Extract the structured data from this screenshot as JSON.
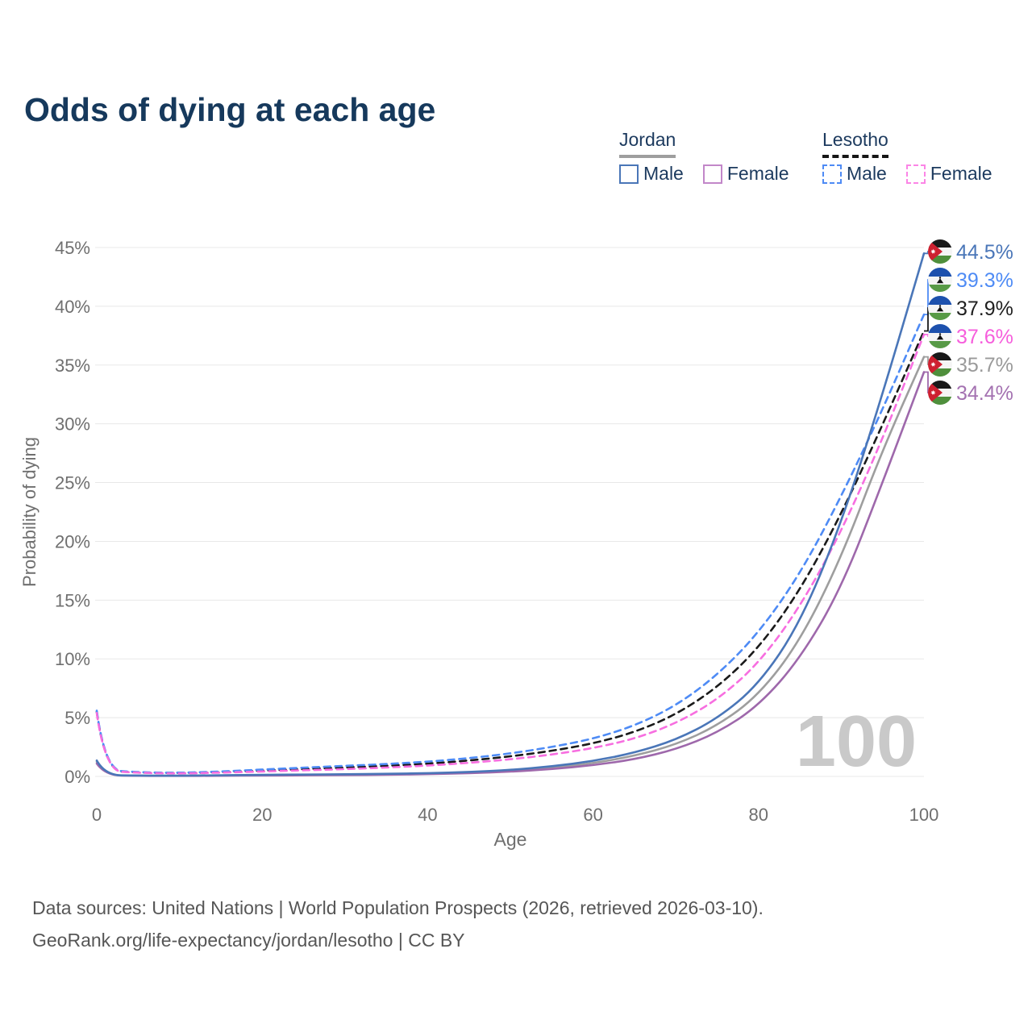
{
  "title": "Odds of dying at each age",
  "legend": {
    "groups": [
      {
        "name": "Jordan",
        "style": "solid",
        "line_color": "#9e9e9e",
        "items": [
          {
            "label": "Male",
            "color": "#4a76b8"
          },
          {
            "label": "Female",
            "color": "#c287c9"
          }
        ]
      },
      {
        "name": "Lesotho",
        "style": "dashed",
        "line_color": "#151515",
        "items": [
          {
            "label": "Male",
            "color": "#4e8bf5"
          },
          {
            "label": "Female",
            "color": "#fb85e6"
          }
        ]
      }
    ]
  },
  "chart_data": {
    "type": "line",
    "title": "Odds of dying at each age",
    "xlabel": "Age",
    "ylabel": "Probability of dying",
    "xlim": [
      0,
      100
    ],
    "ylim": [
      0,
      45
    ],
    "x_ticks": [
      0,
      20,
      40,
      60,
      80,
      100
    ],
    "y_ticks": [
      0,
      5,
      10,
      15,
      20,
      25,
      30,
      35,
      40,
      45
    ],
    "y_tick_suffix": "%",
    "grid": "horizontal-only",
    "legend_position": "top-right",
    "watermark": "100",
    "ages": [
      0,
      1,
      5,
      10,
      15,
      20,
      25,
      30,
      35,
      40,
      45,
      50,
      55,
      60,
      65,
      70,
      75,
      80,
      85,
      90,
      95,
      100
    ],
    "series": [
      {
        "id": "jordan-both",
        "country": "Jordan",
        "sex": "Both",
        "color": "#9e9e9e",
        "label_color": "#9a9a9a",
        "dash": "solid",
        "flag": "jordan",
        "end_label": "35.7%",
        "values": [
          1.25,
          0.11,
          0.06,
          0.05,
          0.08,
          0.11,
          0.13,
          0.15,
          0.18,
          0.23,
          0.32,
          0.48,
          0.74,
          1.12,
          1.75,
          2.7,
          4.3,
          6.9,
          11.5,
          18.6,
          27.8,
          35.7
        ]
      },
      {
        "id": "jordan-female",
        "country": "Jordan",
        "sex": "Female",
        "color": "#9e68ab",
        "label_color": "#a472b1",
        "dash": "solid",
        "flag": "jordan",
        "end_label": "34.4%",
        "values": [
          1.1,
          0.1,
          0.05,
          0.04,
          0.06,
          0.08,
          0.09,
          0.11,
          0.14,
          0.19,
          0.27,
          0.4,
          0.62,
          0.95,
          1.45,
          2.3,
          3.7,
          6.0,
          10.0,
          16.0,
          25.0,
          34.4
        ]
      },
      {
        "id": "lesotho-both",
        "country": "Lesotho",
        "sex": "Both",
        "color": "#1a1a1a",
        "label_color": "#1f1f1f",
        "dash": "dashed",
        "flag": "lesotho",
        "end_label": "37.9%",
        "values": [
          5.5,
          0.52,
          0.32,
          0.28,
          0.37,
          0.5,
          0.63,
          0.76,
          0.9,
          1.08,
          1.35,
          1.7,
          2.17,
          2.8,
          3.75,
          5.25,
          7.55,
          10.9,
          15.8,
          22.3,
          29.9,
          37.9
        ]
      },
      {
        "id": "lesotho-male",
        "country": "Lesotho",
        "sex": "Male",
        "color": "#4e8bf5",
        "label_color": "#4e8bf5",
        "dash": "dashed",
        "flag": "lesotho",
        "end_label": "39.3%",
        "values": [
          5.6,
          0.55,
          0.35,
          0.3,
          0.42,
          0.58,
          0.75,
          0.9,
          1.05,
          1.25,
          1.55,
          1.95,
          2.5,
          3.2,
          4.3,
          6.0,
          8.6,
          12.2,
          17.2,
          23.8,
          31.2,
          39.3
        ]
      },
      {
        "id": "lesotho-female",
        "country": "Lesotho",
        "sex": "Female",
        "color": "#f76ee0",
        "label_color": "#f65edc",
        "dash": "dashed",
        "flag": "lesotho",
        "end_label": "37.6%",
        "values": [
          5.4,
          0.5,
          0.3,
          0.25,
          0.32,
          0.42,
          0.52,
          0.62,
          0.75,
          0.92,
          1.15,
          1.45,
          1.85,
          2.4,
          3.2,
          4.5,
          6.5,
          9.6,
          14.4,
          20.8,
          28.7,
          37.6
        ]
      },
      {
        "id": "jordan-male",
        "country": "Jordan",
        "sex": "Male",
        "color": "#4a76b8",
        "label_color": "#4a76b8",
        "dash": "solid",
        "flag": "jordan",
        "end_label": "44.5%",
        "values": [
          1.35,
          0.12,
          0.06,
          0.06,
          0.1,
          0.14,
          0.16,
          0.18,
          0.22,
          0.27,
          0.37,
          0.55,
          0.85,
          1.3,
          2.0,
          3.1,
          4.9,
          7.8,
          13.0,
          21.5,
          32.5,
          44.5
        ]
      }
    ]
  },
  "footer": {
    "line1": "Data sources: United Nations | World Population Prospects (2026, retrieved 2026-03-10).",
    "line2": "GeoRank.org/life-expectancy/jordan/lesotho | CC BY"
  }
}
